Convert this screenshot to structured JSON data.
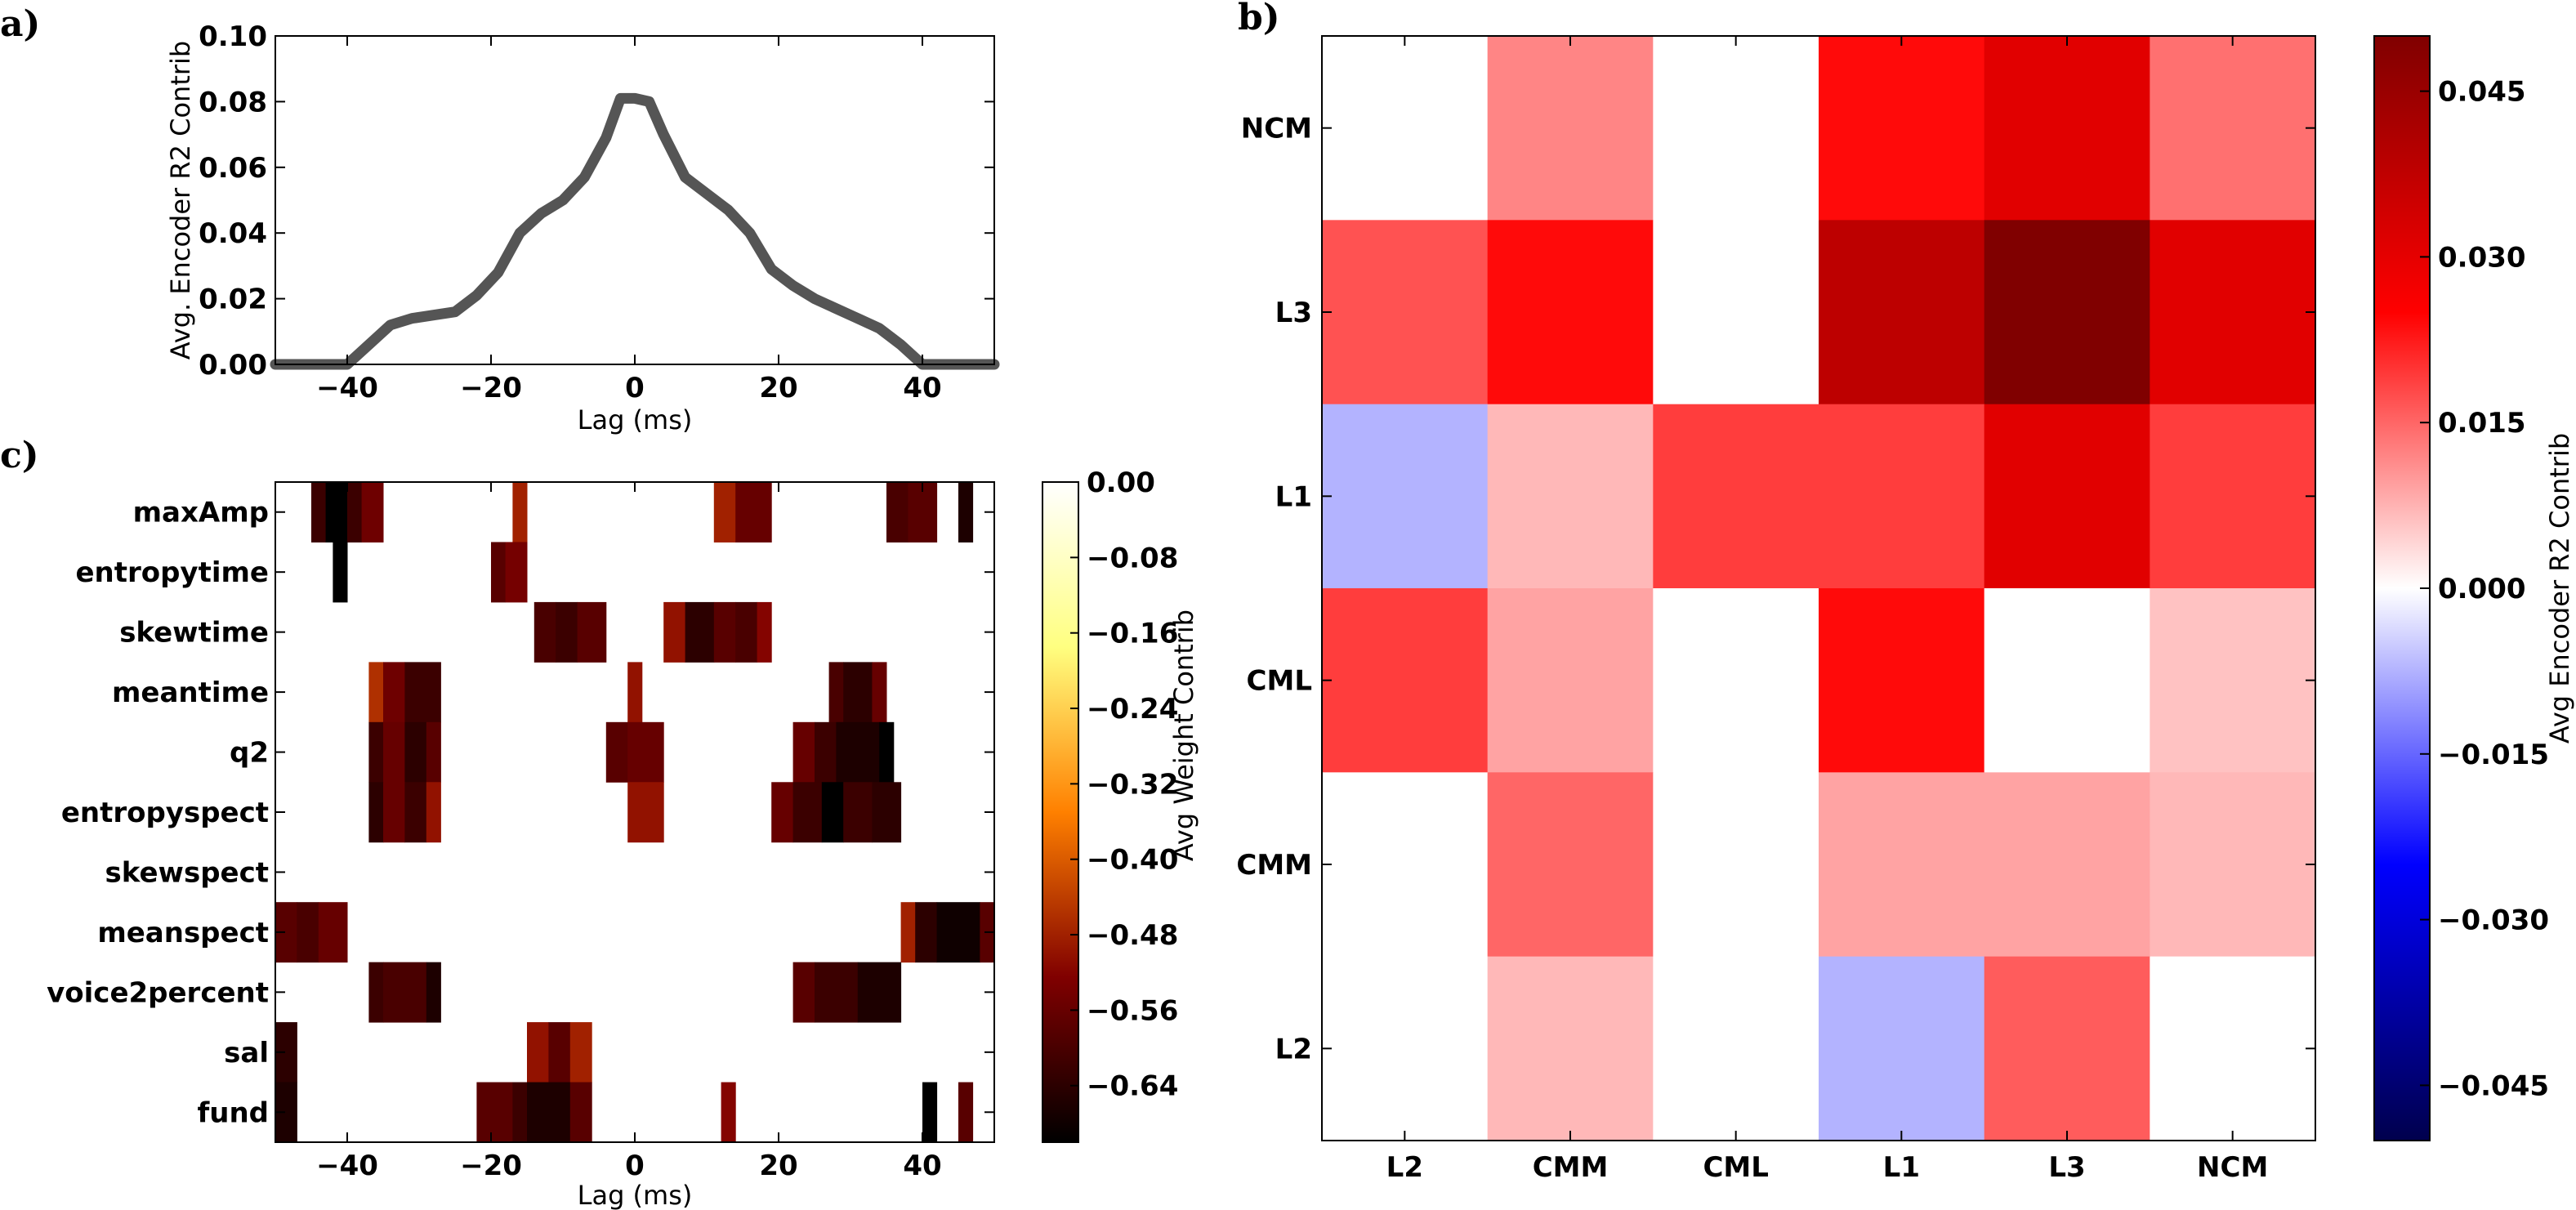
{
  "panel_labels": [
    "a)",
    "b)",
    "c)"
  ],
  "chart_data": [
    {
      "type": "line",
      "panel": "a)",
      "title": "",
      "xlabel": "Lag (ms)",
      "ylabel": "Avg. Encoder R2 Contrib",
      "xlim": [
        -50,
        50
      ],
      "ylim": [
        0,
        0.1
      ],
      "xticks": [
        -40,
        -20,
        0,
        20,
        40
      ],
      "xtick_labels": [
        "−40",
        "−20",
        "0",
        "20",
        "40"
      ],
      "yticks": [
        0,
        0.02,
        0.04,
        0.06,
        0.08,
        0.1
      ],
      "ytick_labels": [
        "0.00",
        "0.02",
        "0.04",
        "0.06",
        "0.08",
        "0.10"
      ],
      "grid": false,
      "color": "#555555",
      "x": [
        -50,
        -40,
        -37,
        -34,
        -31,
        -28,
        -25,
        -22,
        -19,
        -16,
        -13,
        -10,
        -7,
        -4,
        -2,
        0,
        2,
        4,
        7,
        10,
        13,
        16,
        19,
        22,
        25,
        28,
        31,
        34,
        37,
        40,
        50
      ],
      "y": [
        0,
        0,
        0.006,
        0.012,
        0.014,
        0.015,
        0.016,
        0.021,
        0.028,
        0.04,
        0.046,
        0.05,
        0.057,
        0.069,
        0.081,
        0.081,
        0.08,
        0.07,
        0.057,
        0.052,
        0.047,
        0.04,
        0.029,
        0.024,
        0.02,
        0.017,
        0.014,
        0.011,
        0.006,
        0,
        0
      ]
    },
    {
      "type": "heatmap",
      "panel": "b)",
      "title": "",
      "columns": [
        "L2",
        "CMM",
        "CML",
        "L1",
        "L3",
        "NCM"
      ],
      "rows": [
        "NCM",
        "L3",
        "L1",
        "CML",
        "CMM",
        "L2"
      ],
      "values": [
        [
          0.0,
          0.012,
          0.0,
          0.024,
          0.031,
          0.014
        ],
        [
          0.017,
          0.024,
          0.0,
          0.038,
          0.05,
          0.031
        ],
        [
          -0.0075,
          0.007,
          0.019,
          0.019,
          0.031,
          0.019
        ],
        [
          0.019,
          0.009,
          0.0,
          0.024,
          0.0,
          0.006
        ],
        [
          0.0,
          0.015,
          0.0,
          0.009,
          0.009,
          0.007
        ],
        [
          0.0,
          0.007,
          0.0,
          -0.0075,
          0.016,
          0.0
        ]
      ],
      "vlim": [
        -0.05,
        0.05
      ],
      "colormap": "seismic",
      "colorbar_label": "Avg Encoder R2 Contrib",
      "colorbar_ticks": [
        0.045,
        0.03,
        0.015,
        0,
        -0.015,
        -0.03,
        -0.045
      ],
      "colorbar_tick_labels": [
        "0.045",
        "0.030",
        "0.015",
        "0.000",
        "−0.015",
        "−0.030",
        "−0.045"
      ]
    },
    {
      "type": "heatmap",
      "panel": "c)",
      "title": "",
      "xlabel": "Lag (ms)",
      "xlim": [
        -50,
        50
      ],
      "xticks": [
        -40,
        -20,
        0,
        20,
        40
      ],
      "xtick_labels": [
        "−40",
        "−20",
        "0",
        "20",
        "40"
      ],
      "rows": [
        "maxAmp",
        "entropytime",
        "skewtime",
        "meantime",
        "q2",
        "entropyspect",
        "skewspect",
        "meanspect",
        "voice2percent",
        "sal",
        "fund"
      ],
      "colormap": "afmhot",
      "vlim": [
        -0.7,
        0
      ],
      "colorbar_label": "Avg Weight Contrib",
      "colorbar_ticks": [
        0,
        -0.08,
        -0.16,
        -0.24,
        -0.32,
        -0.4,
        -0.48,
        -0.56,
        -0.64
      ],
      "colorbar_tick_labels": [
        "0.00",
        "−0.08",
        "−0.16",
        "−0.24",
        "−0.32",
        "−0.40",
        "−0.48",
        "−0.56",
        "−0.64"
      ],
      "cells": [
        {
          "row": 0,
          "x0": -45,
          "x1": -43,
          "value": -0.62
        },
        {
          "row": 0,
          "x0": -43,
          "x1": -40,
          "value": -0.7
        },
        {
          "row": 0,
          "x0": -40,
          "x1": -38,
          "value": -0.62
        },
        {
          "row": 0,
          "x0": -38,
          "x1": -35,
          "value": -0.55
        },
        {
          "row": 0,
          "x0": -17,
          "x1": -15,
          "value": -0.48
        },
        {
          "row": 0,
          "x0": 11,
          "x1": 14,
          "value": -0.48
        },
        {
          "row": 0,
          "x0": 14,
          "x1": 19,
          "value": -0.56
        },
        {
          "row": 0,
          "x0": 35,
          "x1": 38,
          "value": -0.6
        },
        {
          "row": 0,
          "x0": 38,
          "x1": 42,
          "value": -0.58
        },
        {
          "row": 0,
          "x0": 45,
          "x1": 47,
          "value": -0.66
        },
        {
          "row": 1,
          "x0": -42,
          "x1": -40,
          "value": -0.7
        },
        {
          "row": 1,
          "x0": -20,
          "x1": -18,
          "value": -0.58
        },
        {
          "row": 1,
          "x0": -18,
          "x1": -15,
          "value": -0.54
        },
        {
          "row": 2,
          "x0": -14,
          "x1": -11,
          "value": -0.6
        },
        {
          "row": 2,
          "x0": -11,
          "x1": -8,
          "value": -0.62
        },
        {
          "row": 2,
          "x0": -8,
          "x1": -4,
          "value": -0.58
        },
        {
          "row": 2,
          "x0": 4,
          "x1": 7,
          "value": -0.5
        },
        {
          "row": 2,
          "x0": 7,
          "x1": 11,
          "value": -0.64
        },
        {
          "row": 2,
          "x0": 11,
          "x1": 14,
          "value": -0.58
        },
        {
          "row": 2,
          "x0": 14,
          "x1": 17,
          "value": -0.6
        },
        {
          "row": 2,
          "x0": 17,
          "x1": 19,
          "value": -0.52
        },
        {
          "row": 3,
          "x0": -37,
          "x1": -35,
          "value": -0.46
        },
        {
          "row": 3,
          "x0": -35,
          "x1": -32,
          "value": -0.55
        },
        {
          "row": 3,
          "x0": -32,
          "x1": -27,
          "value": -0.62
        },
        {
          "row": 3,
          "x0": -1,
          "x1": 1,
          "value": -0.5
        },
        {
          "row": 3,
          "x0": 27,
          "x1": 29,
          "value": -0.6
        },
        {
          "row": 3,
          "x0": 29,
          "x1": 33,
          "value": -0.64
        },
        {
          "row": 3,
          "x0": 33,
          "x1": 35,
          "value": -0.56
        },
        {
          "row": 4,
          "x0": -37,
          "x1": -35,
          "value": -0.62
        },
        {
          "row": 4,
          "x0": -35,
          "x1": -32,
          "value": -0.56
        },
        {
          "row": 4,
          "x0": -32,
          "x1": -29,
          "value": -0.64
        },
        {
          "row": 4,
          "x0": -29,
          "x1": -27,
          "value": -0.58
        },
        {
          "row": 4,
          "x0": -4,
          "x1": -1,
          "value": -0.58
        },
        {
          "row": 4,
          "x0": -1,
          "x1": 4,
          "value": -0.56
        },
        {
          "row": 4,
          "x0": 22,
          "x1": 25,
          "value": -0.56
        },
        {
          "row": 4,
          "x0": 25,
          "x1": 28,
          "value": -0.62
        },
        {
          "row": 4,
          "x0": 28,
          "x1": 34,
          "value": -0.66
        },
        {
          "row": 4,
          "x0": 34,
          "x1": 36,
          "value": -0.7
        },
        {
          "row": 5,
          "x0": -37,
          "x1": -35,
          "value": -0.64
        },
        {
          "row": 5,
          "x0": -35,
          "x1": -32,
          "value": -0.56
        },
        {
          "row": 5,
          "x0": -32,
          "x1": -29,
          "value": -0.62
        },
        {
          "row": 5,
          "x0": -29,
          "x1": -27,
          "value": -0.5
        },
        {
          "row": 5,
          "x0": -1,
          "x1": 4,
          "value": -0.5
        },
        {
          "row": 5,
          "x0": 19,
          "x1": 22,
          "value": -0.56
        },
        {
          "row": 5,
          "x0": 22,
          "x1": 26,
          "value": -0.62
        },
        {
          "row": 5,
          "x0": 26,
          "x1": 29,
          "value": -0.7
        },
        {
          "row": 5,
          "x0": 29,
          "x1": 33,
          "value": -0.62
        },
        {
          "row": 5,
          "x0": 33,
          "x1": 37,
          "value": -0.64
        },
        {
          "row": 7,
          "x0": -50,
          "x1": -47,
          "value": -0.58
        },
        {
          "row": 7,
          "x0": -47,
          "x1": -44,
          "value": -0.6
        },
        {
          "row": 7,
          "x0": -44,
          "x1": -40,
          "value": -0.56
        },
        {
          "row": 7,
          "x0": 37,
          "x1": 39,
          "value": -0.48
        },
        {
          "row": 7,
          "x0": 39,
          "x1": 42,
          "value": -0.64
        },
        {
          "row": 7,
          "x0": 42,
          "x1": 48,
          "value": -0.68
        },
        {
          "row": 7,
          "x0": 48,
          "x1": 50,
          "value": -0.58
        },
        {
          "row": 8,
          "x0": -37,
          "x1": -35,
          "value": -0.62
        },
        {
          "row": 8,
          "x0": -35,
          "x1": -29,
          "value": -0.6
        },
        {
          "row": 8,
          "x0": -29,
          "x1": -27,
          "value": -0.66
        },
        {
          "row": 8,
          "x0": 22,
          "x1": 25,
          "value": -0.58
        },
        {
          "row": 8,
          "x0": 25,
          "x1": 31,
          "value": -0.62
        },
        {
          "row": 8,
          "x0": 31,
          "x1": 37,
          "value": -0.66
        },
        {
          "row": 9,
          "x0": -50,
          "x1": -47,
          "value": -0.64
        },
        {
          "row": 9,
          "x0": -15,
          "x1": -12,
          "value": -0.5
        },
        {
          "row": 9,
          "x0": -12,
          "x1": -9,
          "value": -0.58
        },
        {
          "row": 9,
          "x0": -9,
          "x1": -6,
          "value": -0.48
        },
        {
          "row": 10,
          "x0": -50,
          "x1": -47,
          "value": -0.66
        },
        {
          "row": 10,
          "x0": -22,
          "x1": -17,
          "value": -0.58
        },
        {
          "row": 10,
          "x0": -17,
          "x1": -15,
          "value": -0.62
        },
        {
          "row": 10,
          "x0": -15,
          "x1": -9,
          "value": -0.66
        },
        {
          "row": 10,
          "x0": -9,
          "x1": -6,
          "value": -0.58
        },
        {
          "row": 10,
          "x0": 12,
          "x1": 14,
          "value": -0.52
        },
        {
          "row": 10,
          "x0": 40,
          "x1": 42,
          "value": -0.7
        },
        {
          "row": 10,
          "x0": 45,
          "x1": 47,
          "value": -0.58
        }
      ]
    }
  ]
}
